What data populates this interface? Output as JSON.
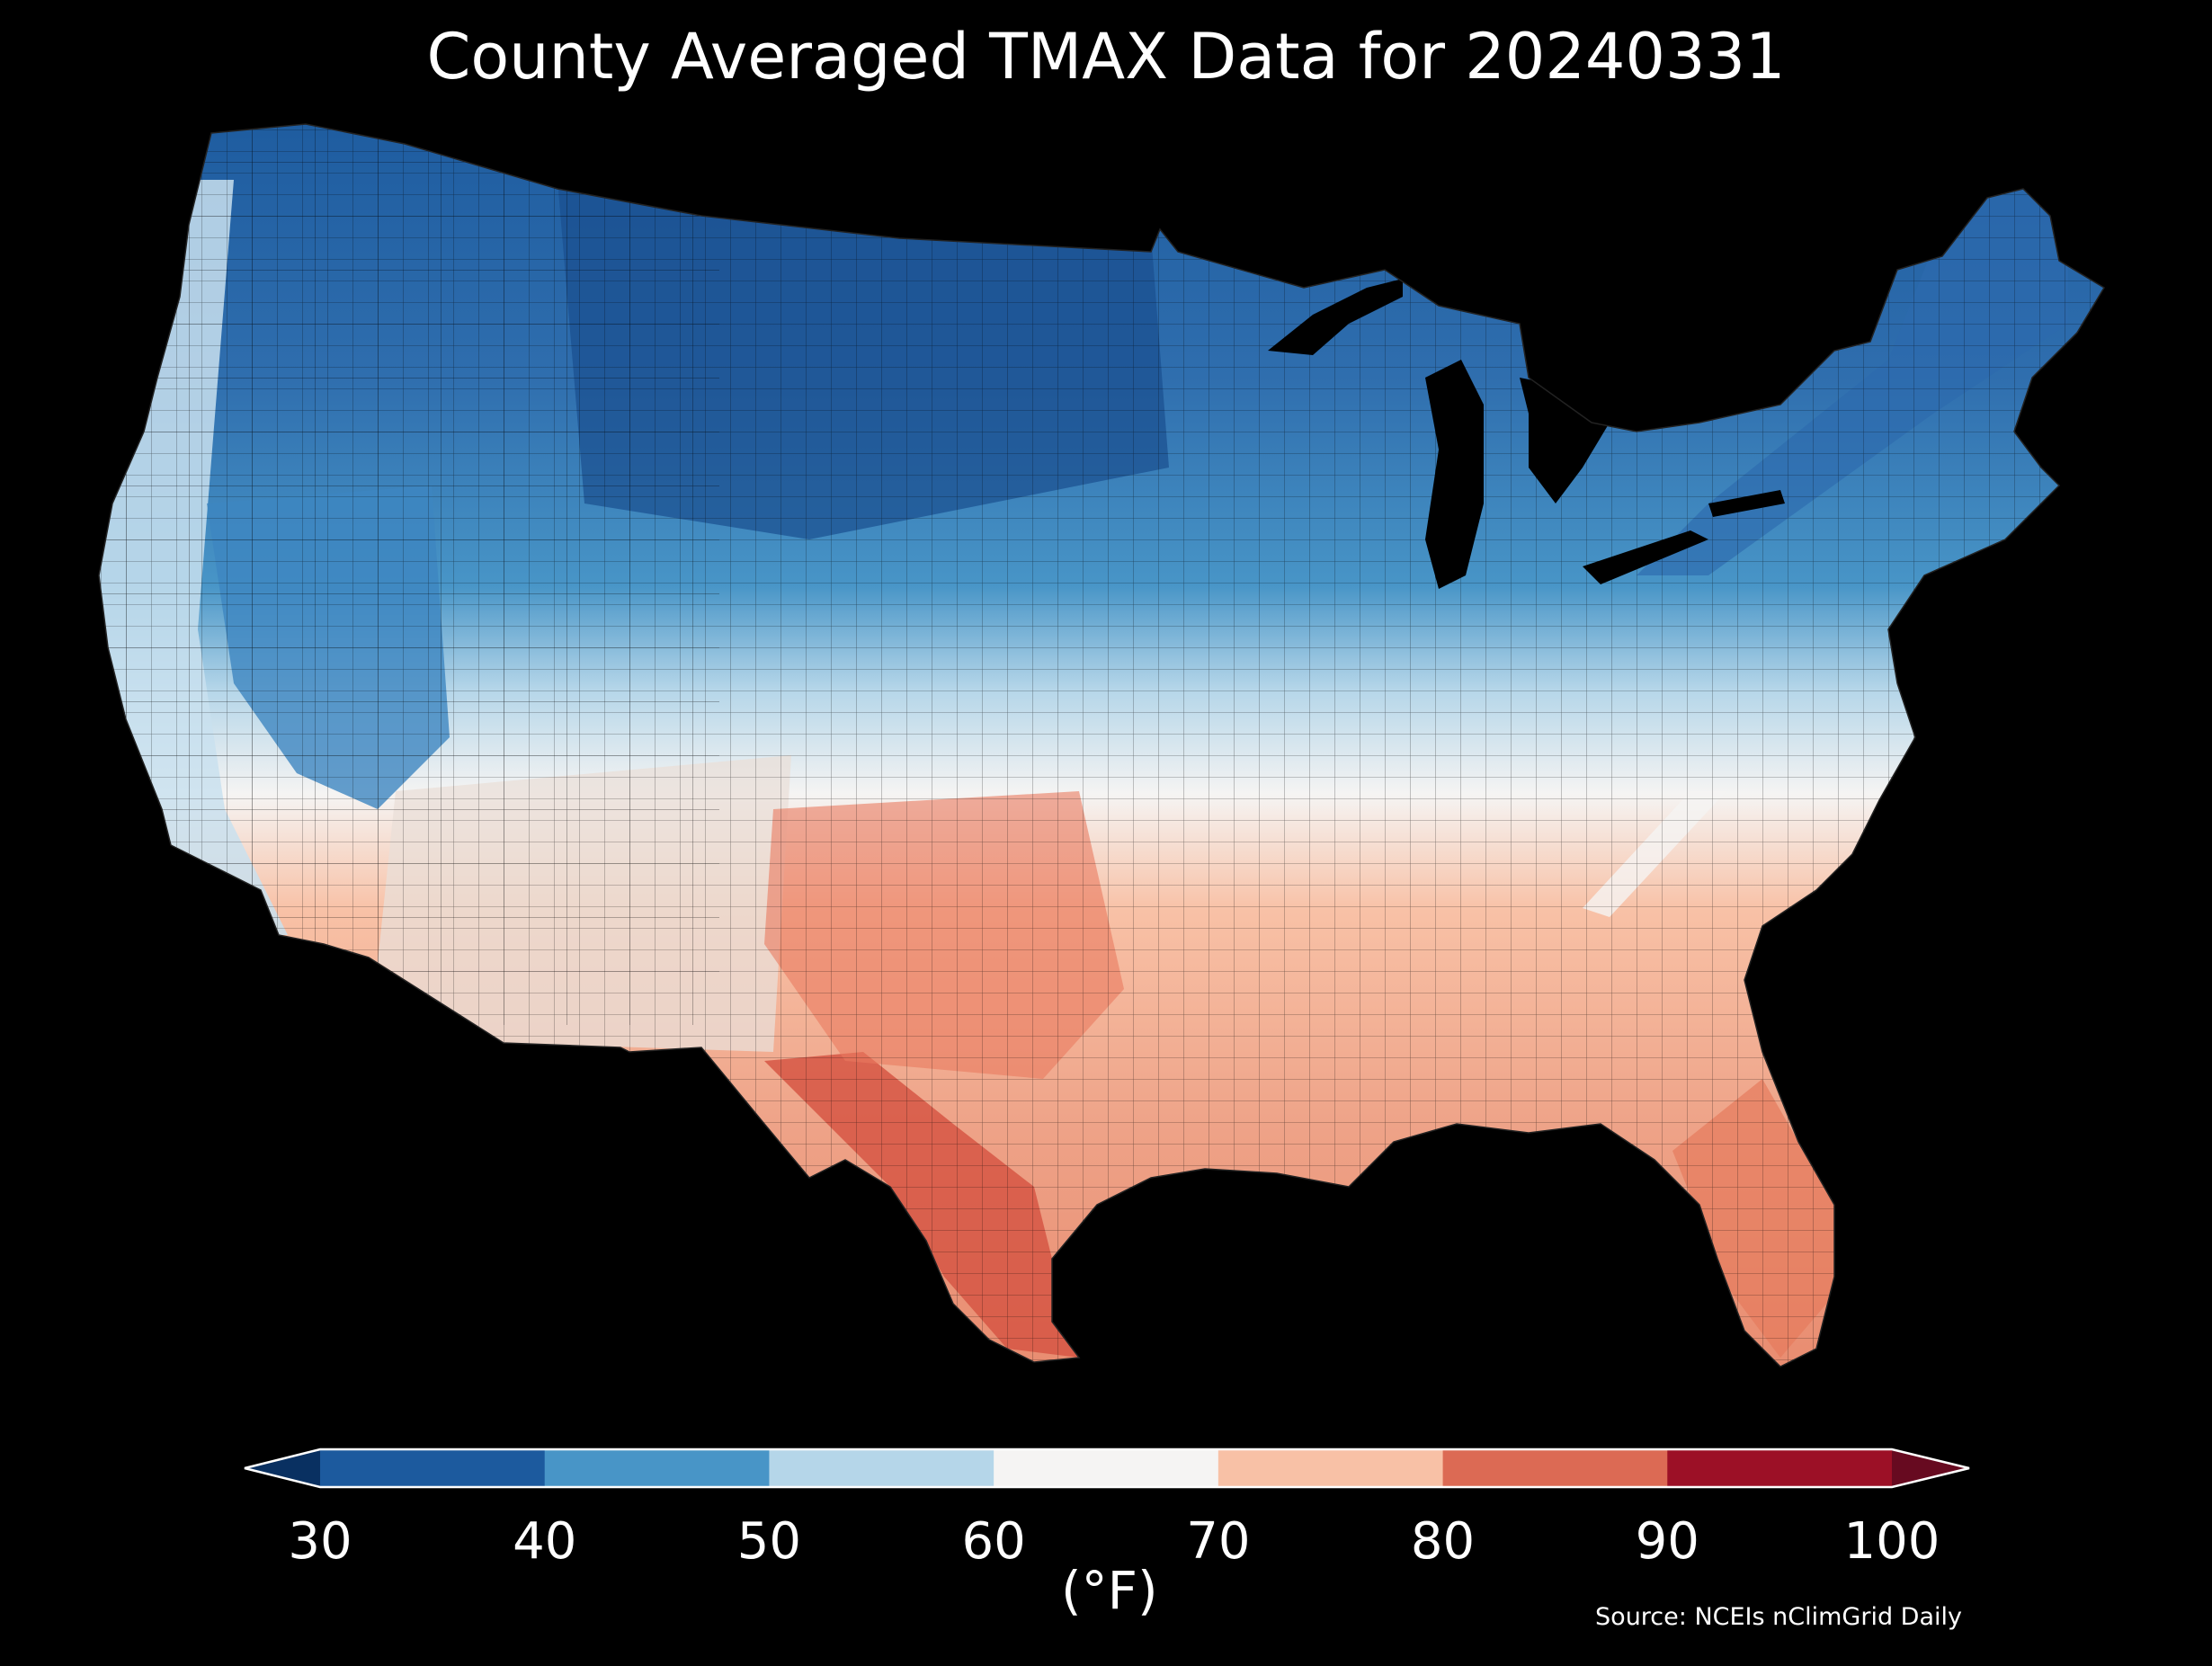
{
  "title": "County Averaged TMAX Data for 20240331",
  "colorbar": {
    "label": "(°F)",
    "ticks": [
      "30",
      "40",
      "50",
      "60",
      "70",
      "80",
      "90",
      "100"
    ],
    "bins": [
      {
        "from": 30,
        "to": 40,
        "color": "#1c5a9e"
      },
      {
        "from": 40,
        "to": 50,
        "color": "#4895c7"
      },
      {
        "from": 50,
        "to": 60,
        "color": "#b5d6e9"
      },
      {
        "from": 60,
        "to": 70,
        "color": "#f5f4f3"
      },
      {
        "from": 70,
        "to": 80,
        "color": "#f8c1a6"
      },
      {
        "from": 80,
        "to": 90,
        "color": "#dc6a54"
      },
      {
        "from": 90,
        "to": 100,
        "color": "#9c1026"
      }
    ],
    "under_color": "#093061",
    "over_color": "#670a20"
  },
  "source": "Source: NCEIs nClimGrid Daily",
  "background_color": "#000000"
}
